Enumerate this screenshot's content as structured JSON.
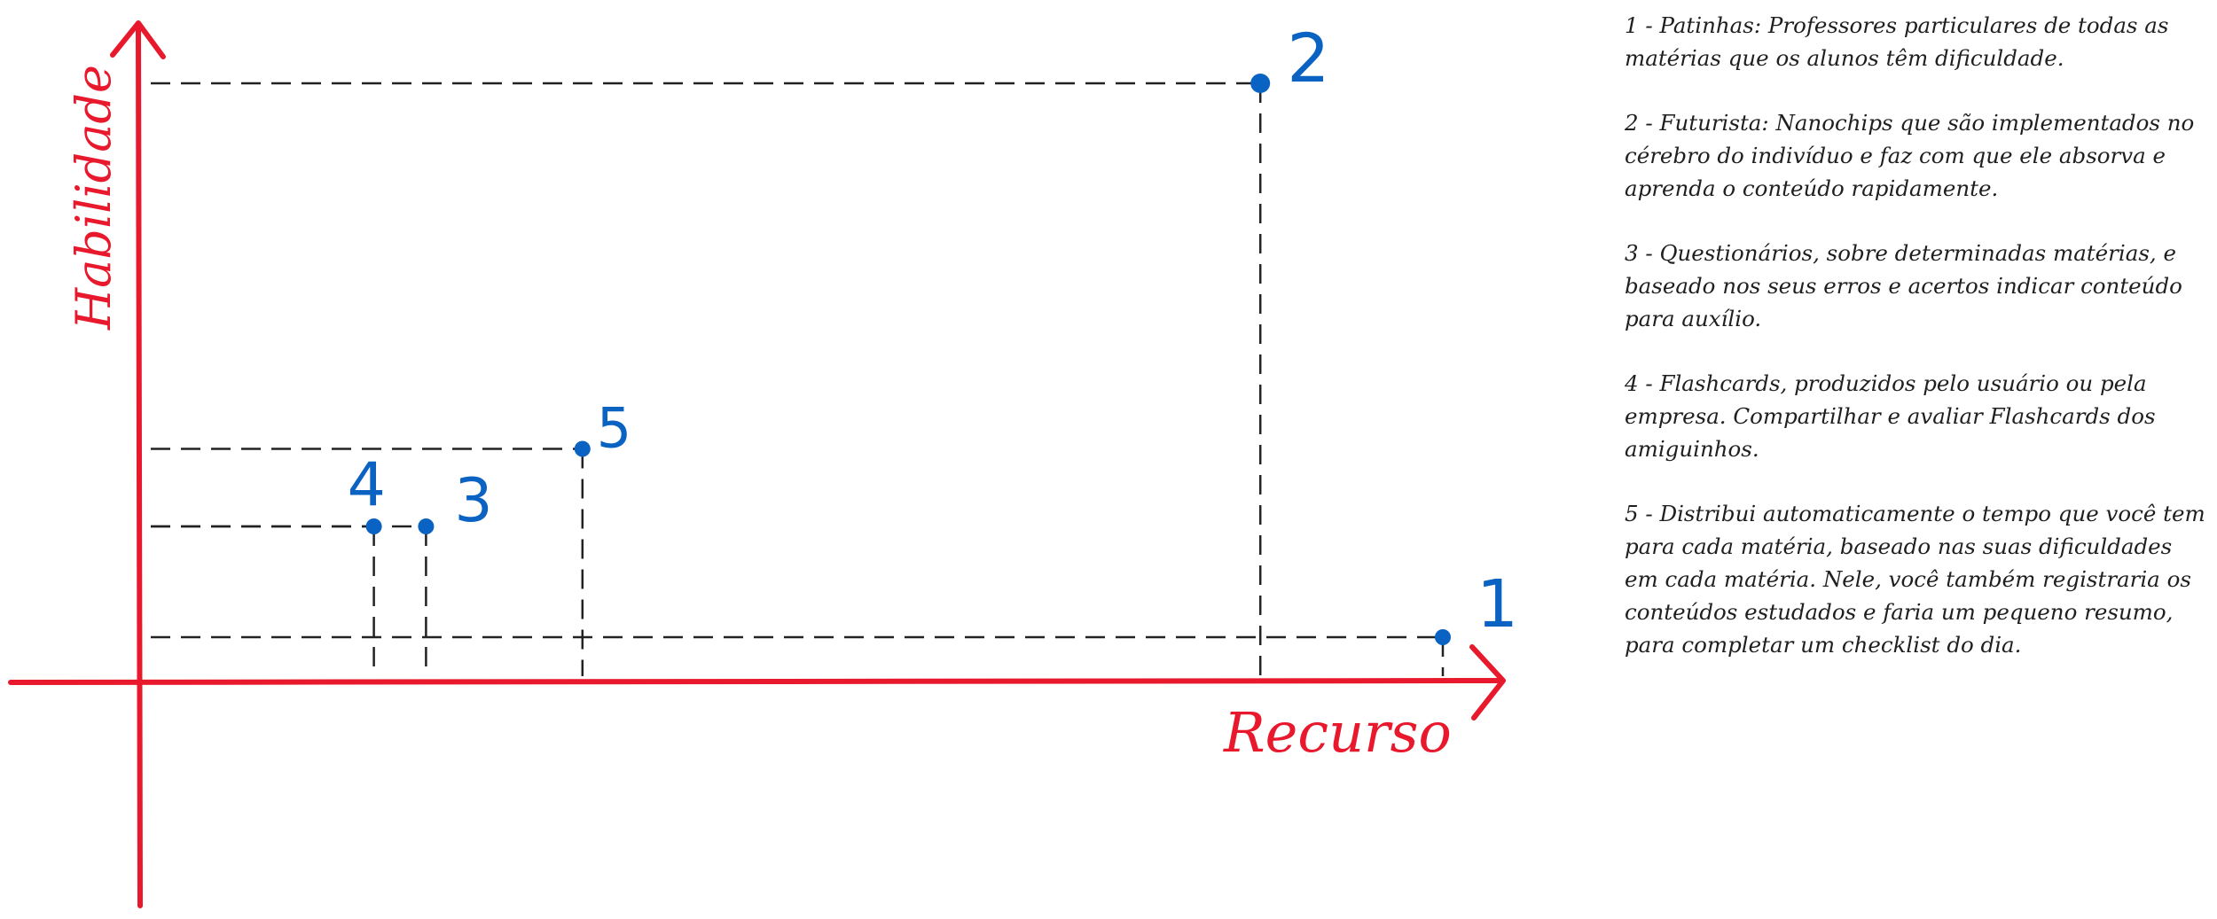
{
  "chart_data": {
    "type": "scatter",
    "xlabel": "Recurso",
    "ylabel": "Habilidade",
    "grid": false,
    "legend": "none",
    "colors": {
      "axes": "#e8192c",
      "points": "#0a63c2",
      "guides": "#222222"
    },
    "points": [
      {
        "label": "1",
        "x": 10.0,
        "y": 0.4
      },
      {
        "label": "2",
        "x": 8.6,
        "y": 5.4
      },
      {
        "label": "3",
        "x": 2.2,
        "y": 1.4
      },
      {
        "label": "4",
        "x": 1.8,
        "y": 1.4
      },
      {
        "label": "5",
        "x": 3.4,
        "y": 2.1
      }
    ]
  },
  "notes": [
    "1 - Patinhas: Professores particulares de todas as matérias que os alunos têm dificuldade.",
    "2 - Futurista: Nanochips que são implementados no cérebro do indivíduo e faz com que ele absorva e aprenda o conteúdo rapidamente.",
    "3 - Questionários, sobre determinadas matérias, e baseado nos seus erros e acertos indicar conteúdo para auxílio.",
    "4 - Flashcards, produzidos pelo usuário ou pela empresa. Compartilhar e avaliar Flashcards dos amiguinhos.",
    "5 - Distribui automaticamente o tempo que você tem para cada matéria, baseado nas suas dificuldades em cada matéria. Nele, você também registraria os conteúdos estudados e faria um pequeno resumo, para completar um checklist do dia."
  ]
}
